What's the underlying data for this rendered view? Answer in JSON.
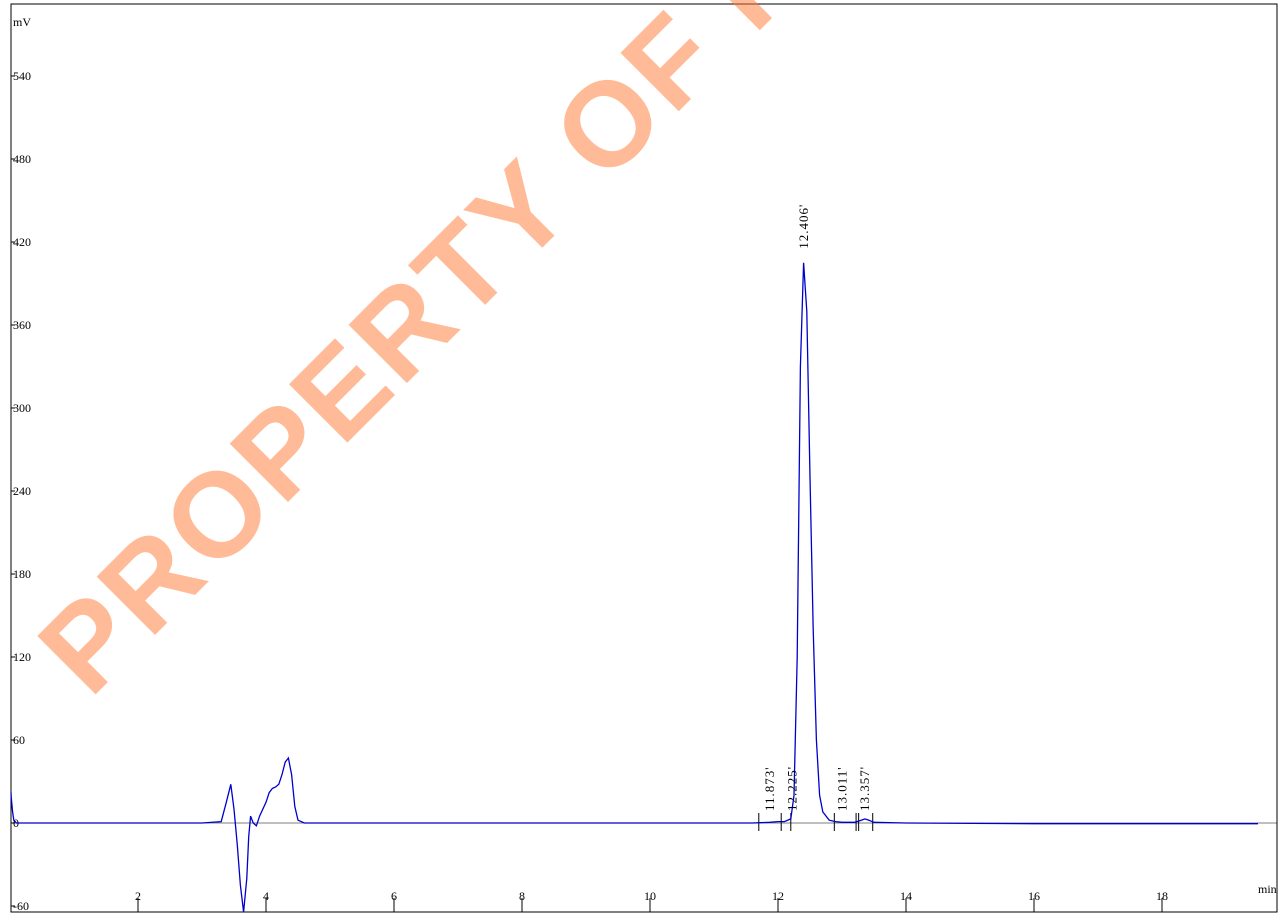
{
  "watermark": {
    "text": "PROPERTY OF PEPTIDES",
    "color": "#ff7a33"
  },
  "chart_data": {
    "type": "line",
    "ylabel": "mV",
    "xlabel": "min",
    "xlim": [
      0,
      19.5
    ],
    "ylim": [
      -60,
      580
    ],
    "x_ticks": [
      2,
      4,
      6,
      8,
      10,
      12,
      14,
      16,
      18
    ],
    "y_ticks": [
      -60,
      0,
      60,
      120,
      180,
      240,
      300,
      360,
      420,
      480,
      540
    ],
    "line_color": "#0000cc",
    "series": [
      {
        "x": [
          0,
          0.02,
          0.04,
          0.06,
          0.1,
          0.2,
          1.0,
          2.0,
          3.0,
          3.3,
          3.38,
          3.45,
          3.5,
          3.55,
          3.6,
          3.65,
          3.7,
          3.73,
          3.76,
          3.8,
          3.85,
          3.9,
          4.0,
          4.05,
          4.1,
          4.15,
          4.2,
          4.25,
          4.3,
          4.35,
          4.4,
          4.45,
          4.5,
          4.6,
          5,
          8,
          11,
          11.6,
          11.87,
          12.0,
          12.1,
          12.2,
          12.25,
          12.3,
          12.35,
          12.4,
          12.45,
          12.5,
          12.55,
          12.6,
          12.65,
          12.7,
          12.8,
          12.9,
          13.0,
          13.2,
          13.3,
          13.36,
          13.42,
          13.5,
          14,
          16,
          18,
          19.5
        ],
        "y": [
          22,
          18,
          8,
          2,
          0,
          0,
          0,
          0,
          0,
          1,
          15,
          28,
          10,
          -15,
          -45,
          -70,
          -40,
          -10,
          5,
          0,
          -2,
          5,
          15,
          22,
          25,
          26,
          28,
          35,
          44,
          47,
          35,
          12,
          2,
          0,
          0,
          0,
          0,
          0,
          0.5,
          1,
          1,
          3,
          20,
          120,
          330,
          405,
          370,
          250,
          140,
          60,
          20,
          8,
          2,
          1,
          0.5,
          0.5,
          2,
          3,
          2,
          0.5,
          0,
          -0.5,
          -0.5,
          -0.5
        ]
      }
    ],
    "peaks": [
      {
        "rt": 11.873,
        "label": "11.873'",
        "marks": [
          11.7,
          12.05
        ]
      },
      {
        "rt": 12.225,
        "label": "12.225'",
        "marks": [
          12.2
        ]
      },
      {
        "rt": 12.406,
        "label": "12.406'",
        "marks": []
      },
      {
        "rt": 13.011,
        "label": "13.011'",
        "marks": [
          12.88,
          13.22
        ]
      },
      {
        "rt": 13.357,
        "label": "13.357'",
        "marks": [
          13.26,
          13.48
        ]
      }
    ]
  }
}
